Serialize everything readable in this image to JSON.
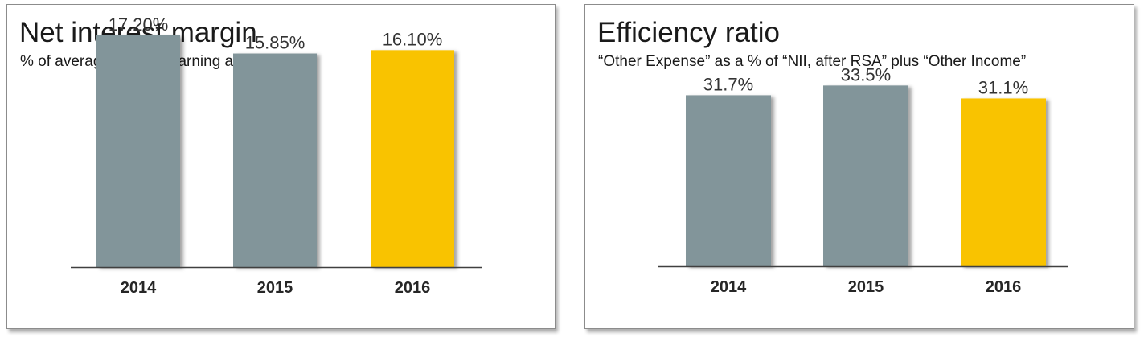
{
  "colors": {
    "bar_default": "#82959A",
    "bar_highlight": "#F9C300",
    "axis": "#404040"
  },
  "chart_data": [
    {
      "type": "bar",
      "title": "Net interest margin",
      "subtitle": "% of average interest-earning assets",
      "xlabel": "",
      "ylabel": "",
      "categories": [
        "2014",
        "2015",
        "2016"
      ],
      "values": [
        17.2,
        15.85,
        16.1
      ],
      "data_labels": [
        "17.20%",
        "15.85%",
        "16.10%"
      ],
      "highlight_index": 2,
      "ylim": [
        0,
        20.3
      ]
    },
    {
      "type": "bar",
      "title": "Efficiency ratio",
      "subtitle": "“Other Expense” as a % of “NII, after RSA” plus “Other Income”",
      "xlabel": "",
      "ylabel": "",
      "categories": [
        "2014",
        "2015",
        "2016"
      ],
      "values": [
        31.7,
        33.5,
        31.1
      ],
      "data_labels": [
        "31.7%",
        "33.5%",
        "31.1%"
      ],
      "highlight_index": 2,
      "ylim": [
        0,
        50.7
      ]
    }
  ]
}
